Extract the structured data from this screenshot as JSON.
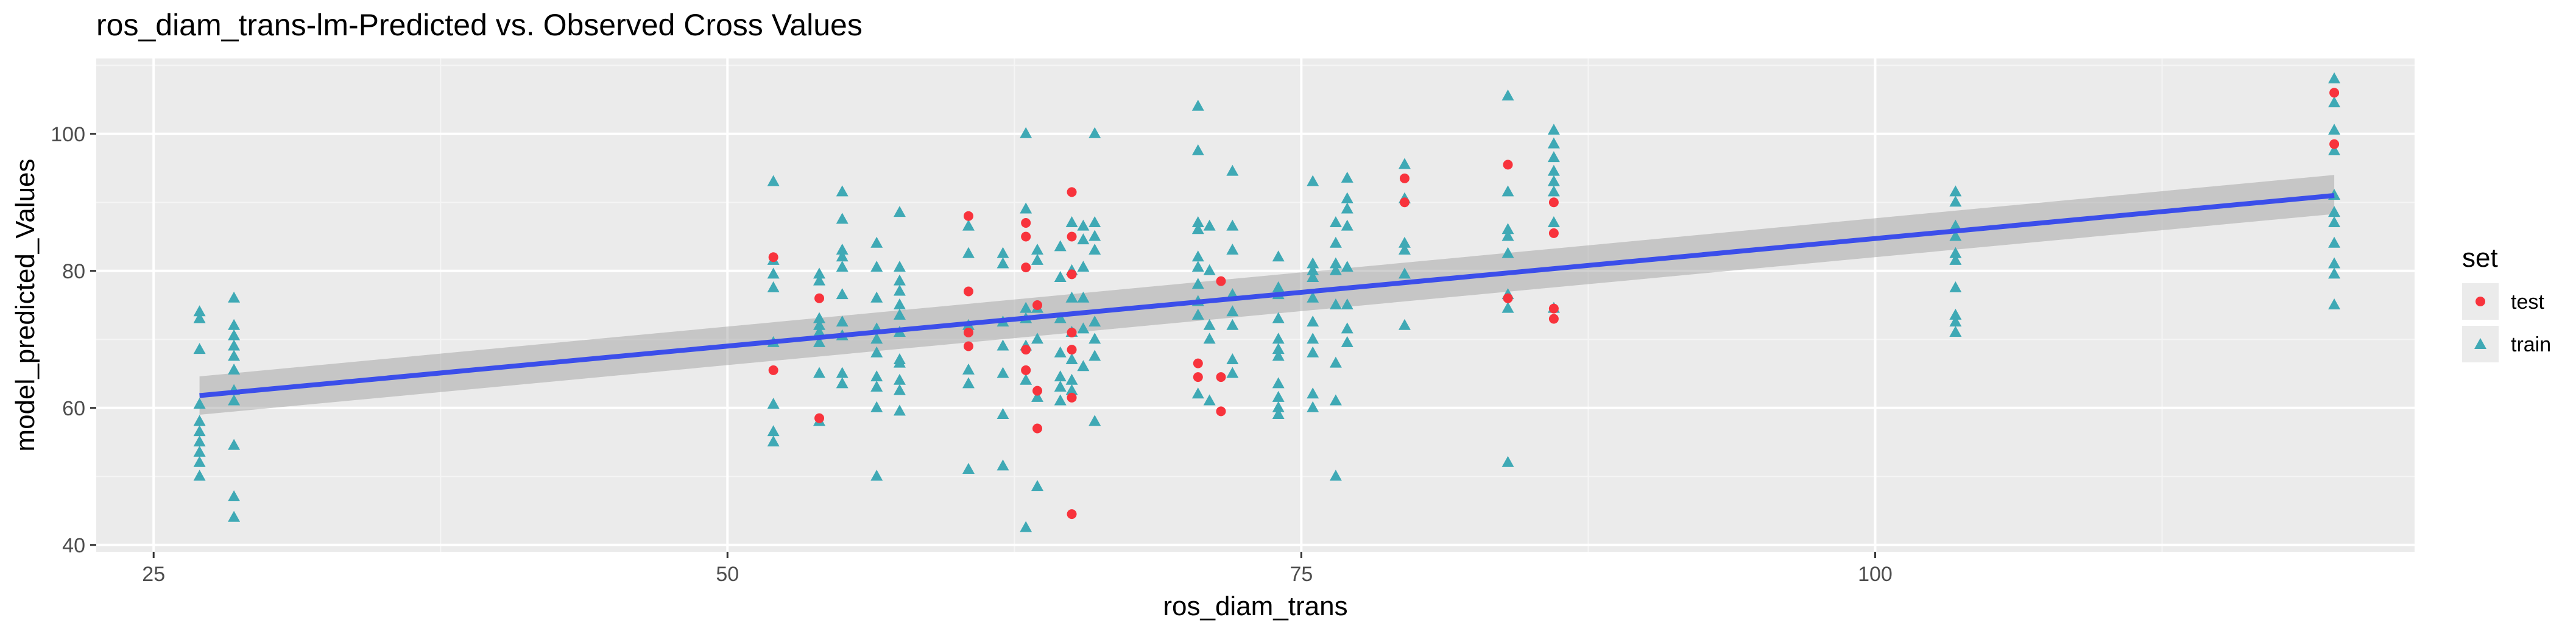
{
  "chart_data": {
    "type": "scatter",
    "title": "ros_diam_trans-lm-Predicted vs. Observed Cross Values",
    "xlabel": "ros_diam_trans",
    "ylabel": "model_predicted_Values",
    "xlim": [
      22.5,
      123.5
    ],
    "ylim": [
      39,
      111
    ],
    "x_ticks": [
      25,
      50,
      75,
      100
    ],
    "x_tick_labels": [
      "25",
      "50",
      "75",
      "100"
    ],
    "y_ticks": [
      40,
      60,
      80,
      100
    ],
    "y_tick_labels": [
      "40",
      "60",
      "80",
      "100"
    ],
    "grid": true,
    "legend": {
      "title": "set",
      "position": "right",
      "entries": [
        {
          "label": "test",
          "shape": "circle",
          "color": "#F8333C"
        },
        {
          "label": "train",
          "shape": "triangle",
          "color": "#3FA9B5"
        }
      ]
    },
    "regression_line": {
      "x": [
        27,
        120
      ],
      "y": [
        61.8,
        91.0
      ],
      "ci_lower": [
        59.0,
        88.3
      ],
      "ci_upper": [
        64.6,
        94.0
      ],
      "color": "#3B4EEA"
    },
    "series": [
      {
        "name": "test",
        "shape": "circle",
        "color": "#F8333C",
        "points": [
          [
            52,
            82
          ],
          [
            52,
            65.5
          ],
          [
            54,
            76
          ],
          [
            54,
            58.5
          ],
          [
            60.5,
            88
          ],
          [
            60.5,
            77
          ],
          [
            60.5,
            69
          ],
          [
            60.5,
            71
          ],
          [
            63,
            87
          ],
          [
            63,
            85
          ],
          [
            63,
            80.5
          ],
          [
            63,
            65.5
          ],
          [
            63,
            68.5
          ],
          [
            63.5,
            75
          ],
          [
            63.5,
            62.5
          ],
          [
            63.5,
            57
          ],
          [
            65,
            91.5
          ],
          [
            65,
            85
          ],
          [
            65,
            79.5
          ],
          [
            65,
            71
          ],
          [
            65,
            68.5
          ],
          [
            65,
            61.5
          ],
          [
            65,
            44.5
          ],
          [
            70.5,
            66.5
          ],
          [
            70.5,
            64.5
          ],
          [
            71.5,
            78.5
          ],
          [
            71.5,
            64.5
          ],
          [
            71.5,
            59.5
          ],
          [
            79.5,
            93.5
          ],
          [
            79.5,
            90
          ],
          [
            84,
            95.5
          ],
          [
            84,
            76
          ],
          [
            86,
            85.5
          ],
          [
            86,
            90
          ],
          [
            86,
            74.5
          ],
          [
            86,
            73
          ],
          [
            120,
            106
          ],
          [
            120,
            98.5
          ]
        ]
      },
      {
        "name": "train",
        "shape": "triangle",
        "color": "#3FA9B5",
        "points": [
          [
            27,
            74
          ],
          [
            27,
            73
          ],
          [
            27,
            68.5
          ],
          [
            27,
            60.5
          ],
          [
            27,
            58
          ],
          [
            27,
            56.5
          ],
          [
            27,
            55
          ],
          [
            27,
            53.5
          ],
          [
            27,
            52
          ],
          [
            27,
            50
          ],
          [
            28.5,
            76
          ],
          [
            28.5,
            72
          ],
          [
            28.5,
            70.5
          ],
          [
            28.5,
            69
          ],
          [
            28.5,
            67.5
          ],
          [
            28.5,
            65.5
          ],
          [
            28.5,
            62.5
          ],
          [
            28.5,
            61
          ],
          [
            28.5,
            54.5
          ],
          [
            28.5,
            47
          ],
          [
            28.5,
            44
          ],
          [
            52,
            93
          ],
          [
            52,
            81.5
          ],
          [
            52,
            79.5
          ],
          [
            52,
            77.5
          ],
          [
            52,
            69.5
          ],
          [
            52,
            60.5
          ],
          [
            52,
            56.5
          ],
          [
            52,
            55
          ],
          [
            54,
            79.5
          ],
          [
            54,
            78.5
          ],
          [
            54,
            73
          ],
          [
            54,
            72
          ],
          [
            54,
            71
          ],
          [
            54,
            69.5
          ],
          [
            54,
            65
          ],
          [
            54,
            58
          ],
          [
            55,
            91.5
          ],
          [
            55,
            87.5
          ],
          [
            55,
            83
          ],
          [
            55,
            82
          ],
          [
            55,
            80.5
          ],
          [
            55,
            76.5
          ],
          [
            55,
            72.5
          ],
          [
            55,
            70.5
          ],
          [
            55,
            65
          ],
          [
            55,
            63.5
          ],
          [
            56.5,
            84
          ],
          [
            56.5,
            80.5
          ],
          [
            56.5,
            76
          ],
          [
            56.5,
            71.5
          ],
          [
            56.5,
            70
          ],
          [
            56.5,
            68
          ],
          [
            56.5,
            64.5
          ],
          [
            56.5,
            63
          ],
          [
            56.5,
            60
          ],
          [
            56.5,
            50
          ],
          [
            57.5,
            88.5
          ],
          [
            57.5,
            80.5
          ],
          [
            57.5,
            78.5
          ],
          [
            57.5,
            77
          ],
          [
            57.5,
            75
          ],
          [
            57.5,
            73.5
          ],
          [
            57.5,
            71
          ],
          [
            57.5,
            67
          ],
          [
            57.5,
            66.5
          ],
          [
            57.5,
            64
          ],
          [
            57.5,
            62.5
          ],
          [
            57.5,
            59.5
          ],
          [
            60.5,
            86.5
          ],
          [
            60.5,
            82.5
          ],
          [
            60.5,
            72
          ],
          [
            60.5,
            65.5
          ],
          [
            60.5,
            63.5
          ],
          [
            60.5,
            51
          ],
          [
            62,
            82.5
          ],
          [
            62,
            81
          ],
          [
            62,
            72.5
          ],
          [
            62,
            69
          ],
          [
            62,
            65
          ],
          [
            62,
            59
          ],
          [
            62,
            51.5
          ],
          [
            63,
            100
          ],
          [
            63,
            89
          ],
          [
            63,
            74.5
          ],
          [
            63,
            73
          ],
          [
            63,
            69
          ],
          [
            63,
            64
          ],
          [
            63,
            42.5
          ],
          [
            63.5,
            83
          ],
          [
            63.5,
            81.5
          ],
          [
            63.5,
            74.5
          ],
          [
            63.5,
            70
          ],
          [
            63.5,
            61.5
          ],
          [
            63.5,
            48.5
          ],
          [
            64.5,
            83.5
          ],
          [
            64.5,
            79
          ],
          [
            64.5,
            73
          ],
          [
            64.5,
            68
          ],
          [
            64.5,
            64.5
          ],
          [
            64.5,
            63
          ],
          [
            64.5,
            61
          ],
          [
            65,
            87
          ],
          [
            65,
            80
          ],
          [
            65,
            76
          ],
          [
            65,
            71
          ],
          [
            65,
            67
          ],
          [
            65,
            64
          ],
          [
            65,
            62.5
          ],
          [
            65.5,
            86.5
          ],
          [
            65.5,
            84.5
          ],
          [
            65.5,
            80.5
          ],
          [
            65.5,
            76
          ],
          [
            65.5,
            71.5
          ],
          [
            65.5,
            66
          ],
          [
            66,
            100
          ],
          [
            66,
            87
          ],
          [
            66,
            85
          ],
          [
            66,
            83
          ],
          [
            66,
            72.5
          ],
          [
            66,
            70
          ],
          [
            66,
            67.5
          ],
          [
            66,
            58
          ],
          [
            70.5,
            104
          ],
          [
            70.5,
            97.5
          ],
          [
            70.5,
            87
          ],
          [
            70.5,
            86
          ],
          [
            70.5,
            82
          ],
          [
            70.5,
            80.5
          ],
          [
            70.5,
            78
          ],
          [
            70.5,
            75.5
          ],
          [
            70.5,
            73.5
          ],
          [
            70.5,
            62
          ],
          [
            71,
            86.5
          ],
          [
            71,
            80
          ],
          [
            71,
            72
          ],
          [
            71,
            70
          ],
          [
            71,
            61
          ],
          [
            72,
            94.5
          ],
          [
            72,
            86.5
          ],
          [
            72,
            83
          ],
          [
            72,
            76.5
          ],
          [
            72,
            74
          ],
          [
            72,
            72
          ],
          [
            72,
            67
          ],
          [
            72,
            65
          ],
          [
            74,
            82
          ],
          [
            74,
            77.5
          ],
          [
            74,
            76.5
          ],
          [
            74,
            73
          ],
          [
            74,
            70
          ],
          [
            74,
            68.5
          ],
          [
            74,
            67.5
          ],
          [
            74,
            63.5
          ],
          [
            74,
            61.5
          ],
          [
            74,
            60
          ],
          [
            74,
            59
          ],
          [
            75.5,
            93
          ],
          [
            75.5,
            81
          ],
          [
            75.5,
            80
          ],
          [
            75.5,
            79
          ],
          [
            75.5,
            76
          ],
          [
            75.5,
            72.5
          ],
          [
            75.5,
            70
          ],
          [
            75.5,
            68
          ],
          [
            75.5,
            62
          ],
          [
            75.5,
            60
          ],
          [
            76.5,
            87
          ],
          [
            76.5,
            84
          ],
          [
            76.5,
            81
          ],
          [
            76.5,
            80
          ],
          [
            76.5,
            75
          ],
          [
            76.5,
            66.5
          ],
          [
            76.5,
            61
          ],
          [
            76.5,
            50
          ],
          [
            77,
            93.5
          ],
          [
            77,
            90.5
          ],
          [
            77,
            89
          ],
          [
            77,
            86.5
          ],
          [
            77,
            80.5
          ],
          [
            77,
            75
          ],
          [
            77,
            71.5
          ],
          [
            77,
            69.5
          ],
          [
            79.5,
            95.5
          ],
          [
            79.5,
            90.5
          ],
          [
            79.5,
            84
          ],
          [
            79.5,
            83
          ],
          [
            79.5,
            79.5
          ],
          [
            79.5,
            72
          ],
          [
            84,
            105.5
          ],
          [
            84,
            91.5
          ],
          [
            84,
            86
          ],
          [
            84,
            85
          ],
          [
            84,
            82.5
          ],
          [
            84,
            76.5
          ],
          [
            84,
            74.5
          ],
          [
            84,
            52
          ],
          [
            86,
            100.5
          ],
          [
            86,
            98.5
          ],
          [
            86,
            96.5
          ],
          [
            86,
            94.5
          ],
          [
            86,
            93
          ],
          [
            86,
            91.5
          ],
          [
            86,
            87
          ],
          [
            86,
            74.5
          ],
          [
            103.5,
            91.5
          ],
          [
            103.5,
            90
          ],
          [
            103.5,
            86.5
          ],
          [
            103.5,
            85
          ],
          [
            103.5,
            82.5
          ],
          [
            103.5,
            81.5
          ],
          [
            103.5,
            77.5
          ],
          [
            103.5,
            73.5
          ],
          [
            103.5,
            72.5
          ],
          [
            103.5,
            71
          ],
          [
            120,
            108
          ],
          [
            120,
            104.5
          ],
          [
            120,
            100.5
          ],
          [
            120,
            97.5
          ],
          [
            120,
            91
          ],
          [
            120,
            88.5
          ],
          [
            120,
            87
          ],
          [
            120,
            84
          ],
          [
            120,
            81
          ],
          [
            120,
            79.5
          ],
          [
            120,
            75
          ]
        ]
      }
    ]
  }
}
